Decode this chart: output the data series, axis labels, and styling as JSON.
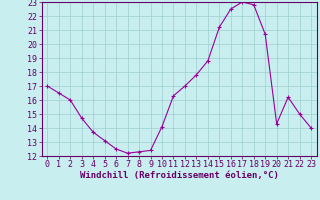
{
  "x": [
    0,
    1,
    2,
    3,
    4,
    5,
    6,
    7,
    8,
    9,
    10,
    11,
    12,
    13,
    14,
    15,
    16,
    17,
    18,
    19,
    20,
    21,
    22,
    23
  ],
  "y": [
    17.0,
    16.5,
    16.0,
    14.7,
    13.7,
    13.1,
    12.5,
    12.2,
    12.3,
    12.4,
    14.1,
    16.3,
    17.0,
    17.8,
    18.8,
    21.2,
    22.5,
    23.0,
    22.8,
    20.7,
    14.3,
    16.2,
    15.0,
    14.0
  ],
  "line_color": "#990099",
  "marker": "D",
  "marker_size": 2.0,
  "bg_color": "#c8eef0",
  "grid_color": "#9ecece",
  "xlabel": "Windchill (Refroidissement éolien,°C)",
  "ylim": [
    12,
    23
  ],
  "xlim": [
    -0.5,
    23.5
  ],
  "yticks": [
    12,
    13,
    14,
    15,
    16,
    17,
    18,
    19,
    20,
    21,
    22,
    23
  ],
  "xticks": [
    0,
    1,
    2,
    3,
    4,
    5,
    6,
    7,
    8,
    9,
    10,
    11,
    12,
    13,
    14,
    15,
    16,
    17,
    18,
    19,
    20,
    21,
    22,
    23
  ],
  "xlabel_fontsize": 6.5,
  "tick_fontsize": 6.0,
  "axis_color": "#660066"
}
